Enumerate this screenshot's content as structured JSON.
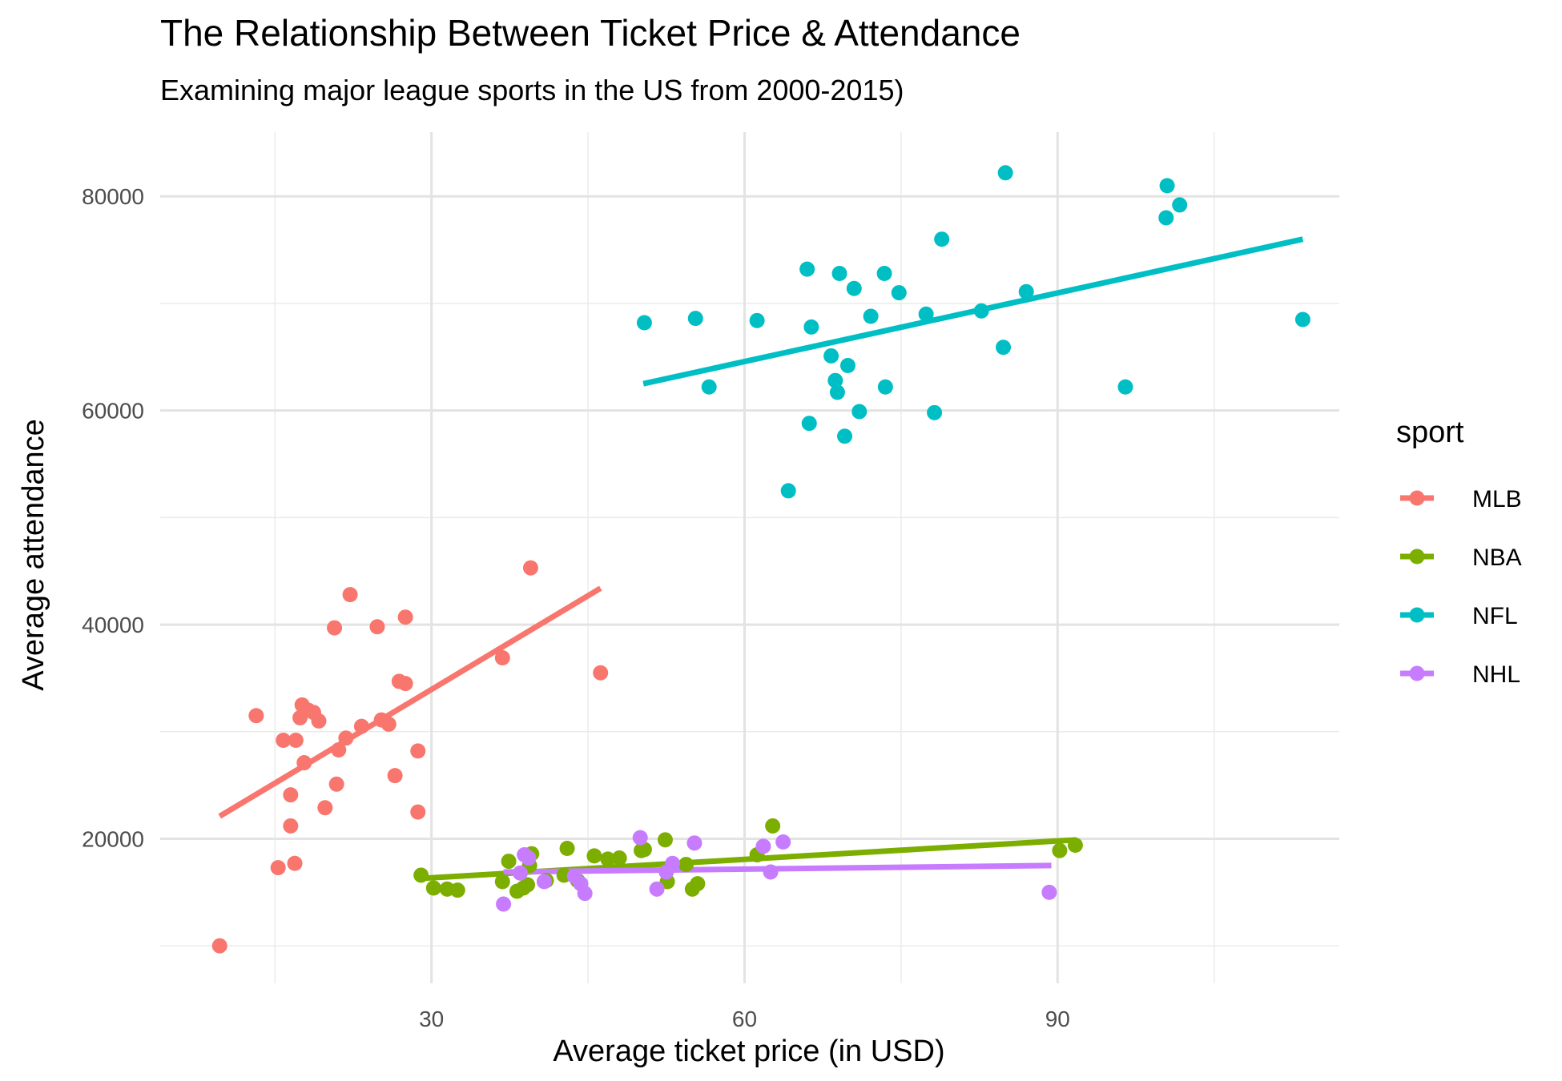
{
  "chart_data": {
    "type": "scatter",
    "title": "The Relationship Between Ticket Price & Attendance",
    "subtitle": "Examining major league sports in the US from 2000-2015)",
    "xlabel": "Average ticket price (in USD)",
    "ylabel": "Average attendance",
    "xlim": [
      4,
      117
    ],
    "ylim": [
      6500,
      86000
    ],
    "x_ticks": [
      30,
      60,
      90
    ],
    "x_minor_ticks": [
      15,
      45,
      75,
      105
    ],
    "y_ticks": [
      20000,
      40000,
      60000,
      80000
    ],
    "y_minor_ticks": [
      10000,
      30000,
      50000,
      70000
    ],
    "grid": true,
    "legend": {
      "title": "sport",
      "position": "right"
    },
    "series": [
      {
        "name": "MLB",
        "color": "#F8766D",
        "trend": [
          [
            9.7,
            22100
          ],
          [
            46.2,
            43400
          ]
        ],
        "points": [
          [
            9.7,
            10000
          ],
          [
            13.2,
            31500
          ],
          [
            15.3,
            17300
          ],
          [
            15.8,
            29200
          ],
          [
            16.5,
            24100
          ],
          [
            16.5,
            21200
          ],
          [
            16.9,
            17700
          ],
          [
            17.0,
            29200
          ],
          [
            17.4,
            31300
          ],
          [
            17.6,
            32500
          ],
          [
            17.8,
            27100
          ],
          [
            18.2,
            32000
          ],
          [
            18.7,
            31800
          ],
          [
            19.2,
            31000
          ],
          [
            19.8,
            22900
          ],
          [
            20.7,
            39700
          ],
          [
            20.9,
            25100
          ],
          [
            21.1,
            28300
          ],
          [
            21.8,
            29400
          ],
          [
            22.2,
            42800
          ],
          [
            23.3,
            30500
          ],
          [
            24.8,
            39800
          ],
          [
            25.2,
            31100
          ],
          [
            25.9,
            30700
          ],
          [
            26.5,
            25900
          ],
          [
            26.9,
            34700
          ],
          [
            27.5,
            34500
          ],
          [
            27.5,
            40700
          ],
          [
            28.7,
            28200
          ],
          [
            28.7,
            22500
          ],
          [
            36.8,
            36900
          ],
          [
            39.5,
            45300
          ],
          [
            46.2,
            35500
          ]
        ]
      },
      {
        "name": "NBA",
        "color": "#7CAE00",
        "trend": [
          [
            29.0,
            16300
          ],
          [
            91.8,
            19900
          ]
        ],
        "points": [
          [
            29.0,
            16600
          ],
          [
            30.2,
            15400
          ],
          [
            31.5,
            15300
          ],
          [
            32.5,
            15200
          ],
          [
            36.8,
            16000
          ],
          [
            37.4,
            17900
          ],
          [
            38.2,
            15100
          ],
          [
            38.8,
            15400
          ],
          [
            39.2,
            15700
          ],
          [
            39.4,
            17500
          ],
          [
            39.6,
            18600
          ],
          [
            41.0,
            16100
          ],
          [
            42.7,
            16600
          ],
          [
            43.0,
            19100
          ],
          [
            44.0,
            16100
          ],
          [
            45.6,
            18400
          ],
          [
            46.9,
            18100
          ],
          [
            48.0,
            18200
          ],
          [
            50.1,
            18900
          ],
          [
            50.4,
            19000
          ],
          [
            52.4,
            19900
          ],
          [
            52.6,
            16000
          ],
          [
            54.4,
            17600
          ],
          [
            55.0,
            15300
          ],
          [
            55.5,
            15800
          ],
          [
            61.2,
            18500
          ],
          [
            62.7,
            21200
          ],
          [
            90.2,
            18900
          ],
          [
            91.7,
            19400
          ]
        ]
      },
      {
        "name": "NFL",
        "color": "#00BFC4",
        "trend": [
          [
            50.3,
            62500
          ],
          [
            113.5,
            76000
          ]
        ],
        "points": [
          [
            50.4,
            68200
          ],
          [
            55.3,
            68600
          ],
          [
            56.6,
            62200
          ],
          [
            61.2,
            68400
          ],
          [
            64.2,
            52500
          ],
          [
            66.0,
            73200
          ],
          [
            66.2,
            58800
          ],
          [
            66.4,
            67800
          ],
          [
            68.3,
            65100
          ],
          [
            68.7,
            62800
          ],
          [
            68.9,
            61700
          ],
          [
            69.1,
            72800
          ],
          [
            69.6,
            57600
          ],
          [
            69.9,
            64200
          ],
          [
            70.5,
            71400
          ],
          [
            71.0,
            59900
          ],
          [
            72.1,
            68800
          ],
          [
            73.4,
            72800
          ],
          [
            73.5,
            62200
          ],
          [
            74.8,
            71000
          ],
          [
            77.4,
            69000
          ],
          [
            78.2,
            59800
          ],
          [
            78.9,
            76000
          ],
          [
            82.7,
            69300
          ],
          [
            84.8,
            65900
          ],
          [
            85.0,
            82200
          ],
          [
            87.0,
            71100
          ],
          [
            96.5,
            62200
          ],
          [
            100.5,
            81000
          ],
          [
            100.4,
            78000
          ],
          [
            101.7,
            79200
          ],
          [
            113.5,
            68500
          ]
        ]
      },
      {
        "name": "NHL",
        "color": "#C77CFF",
        "trend": [
          [
            36.9,
            16900
          ],
          [
            89.4,
            17500
          ]
        ],
        "points": [
          [
            36.9,
            13900
          ],
          [
            38.5,
            16800
          ],
          [
            38.9,
            18500
          ],
          [
            39.3,
            18200
          ],
          [
            40.8,
            16000
          ],
          [
            43.7,
            16500
          ],
          [
            44.3,
            15800
          ],
          [
            44.7,
            14900
          ],
          [
            50.0,
            20100
          ],
          [
            51.6,
            15300
          ],
          [
            52.5,
            16900
          ],
          [
            53.1,
            17700
          ],
          [
            55.2,
            19600
          ],
          [
            61.8,
            19300
          ],
          [
            62.5,
            16900
          ],
          [
            63.7,
            19700
          ],
          [
            89.2,
            15000
          ]
        ]
      }
    ]
  }
}
